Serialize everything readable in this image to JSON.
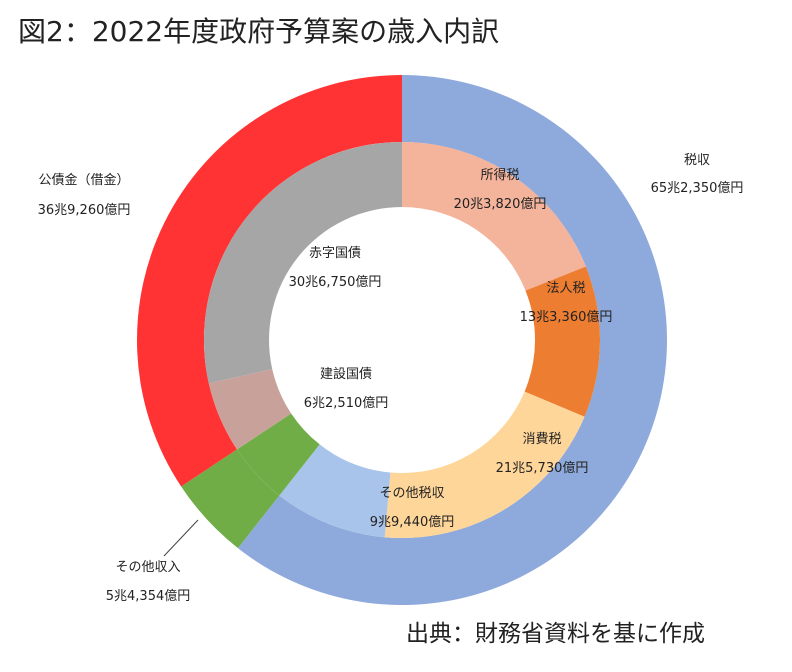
{
  "title": "図2：2022年度政府予算案の歳入内訳",
  "source": "出典：財務省資料を基に作成",
  "chart_data": {
    "type": "pie",
    "variant": "nested-donut",
    "unit": "億円",
    "outer_ring": [
      {
        "name": "税収",
        "value_label": "65兆2,350億円",
        "value": 652350,
        "color": "#8EA9DB"
      },
      {
        "name": "その他収入",
        "value_label": "5兆4,354億円",
        "value": 54354,
        "color": "#70AD47"
      },
      {
        "name": "公債金（借金）",
        "value_label": "36兆9,260億円",
        "value": 369260,
        "color": "#FF3333"
      }
    ],
    "inner_ring": [
      {
        "name": "所得税",
        "value_label": "20兆3,820億円",
        "value": 203820,
        "color": "#F4B49C"
      },
      {
        "name": "法人税",
        "value_label": "13兆3,360億円",
        "value": 133360,
        "color": "#ED7D31"
      },
      {
        "name": "消費税",
        "value_label": "21兆5,730億円",
        "value": 215730,
        "color": "#FFD699"
      },
      {
        "name": "その他税収",
        "value_label": "9兆9,440億円",
        "value": 99440,
        "color": "#A9C4EB"
      },
      {
        "name": "その他収入",
        "value_label": "",
        "value": 54354,
        "color": "#70AD47"
      },
      {
        "name": "建設国債",
        "value_label": "6兆2,510億円",
        "value": 62510,
        "color": "#C8A29A"
      },
      {
        "name": "赤字国債",
        "value_label": "30兆6,750億円",
        "value": 306750,
        "color": "#A6A6A6"
      }
    ]
  }
}
